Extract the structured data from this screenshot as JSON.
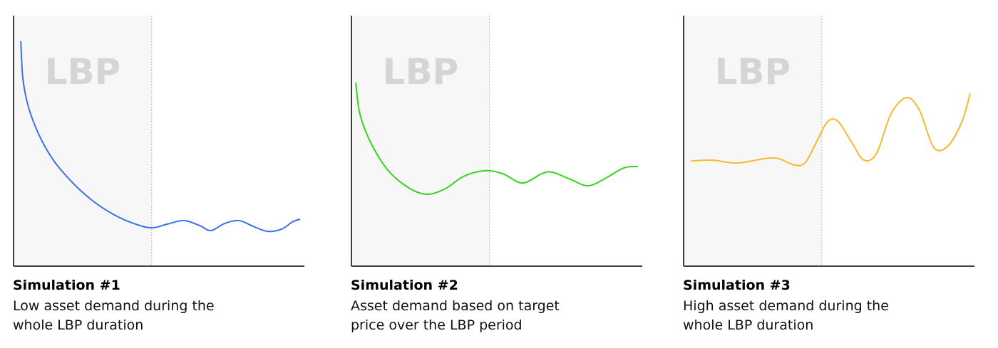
{
  "chart_data": [
    {
      "type": "line",
      "title": "Simulation #1",
      "subtitle": "Low asset demand during the whole LBP duration",
      "annotation": "LBP",
      "lbp_end": 47.5,
      "xlim": [
        0,
        100
      ],
      "ylim": [
        0,
        100
      ],
      "series": [
        {
          "color": "#3d6fea",
          "x": [
            2.5,
            3.2,
            5.1,
            8.8,
            13.7,
            19.9,
            27.2,
            34.6,
            41.9,
            47.5,
            52.9,
            58.6,
            64.0,
            67.9,
            72.5,
            77.5,
            82.4,
            87.3,
            92.2,
            95.8,
            98.5
          ],
          "values": [
            89.8,
            75,
            63.6,
            52.3,
            42.3,
            33.8,
            26.1,
            20.5,
            16.8,
            15.3,
            16.8,
            18.2,
            16.2,
            14.2,
            17.0,
            18.2,
            15.9,
            13.9,
            14.8,
            17.6,
            18.8
          ]
        }
      ]
    },
    {
      "type": "line",
      "title": "Simulation #2",
      "subtitle": "Asset demand based on target price over the LBP period",
      "annotation": "LBP",
      "lbp_end": 47.5,
      "xlim": [
        0,
        100
      ],
      "ylim": [
        0,
        100
      ],
      "series": [
        {
          "color": "#35d41c",
          "x": [
            1.5,
            2.9,
            6.6,
            12.7,
            20.1,
            26.2,
            32.4,
            38.5,
            45.8,
            52.0,
            58.8,
            65.4,
            69.1,
            75.2,
            81.4,
            87.5,
            93.6,
            98.5
          ],
          "values": [
            73.3,
            60.8,
            49.4,
            38.1,
            31.0,
            28.7,
            31.0,
            35.8,
            38.1,
            36.9,
            33.2,
            36.9,
            37.5,
            34.7,
            32.1,
            35.2,
            39.2,
            39.8
          ]
        }
      ]
    },
    {
      "type": "line",
      "title": "Simulation #3",
      "subtitle": "High asset demand during the whole LBP duration",
      "annotation": "LBP",
      "lbp_end": 47.5,
      "xlim": [
        0,
        100
      ],
      "ylim": [
        0,
        100
      ],
      "series": [
        {
          "color": "#f6b92b",
          "x": [
            2.5,
            10.0,
            18.6,
            30.9,
            38.2,
            41.9,
            45.6,
            49.3,
            52.9,
            57.8,
            62.0,
            66.4,
            71.3,
            76.7,
            81.1,
            86.0,
            90.9,
            95.8,
            98.5
          ],
          "values": [
            42.0,
            42.3,
            41.2,
            43.2,
            40.3,
            41.5,
            49.4,
            57.4,
            58.0,
            49.4,
            42.3,
            45.2,
            60.8,
            67.3,
            62.2,
            47.4,
            48.0,
            58.0,
            69.0
          ]
        }
      ]
    }
  ]
}
